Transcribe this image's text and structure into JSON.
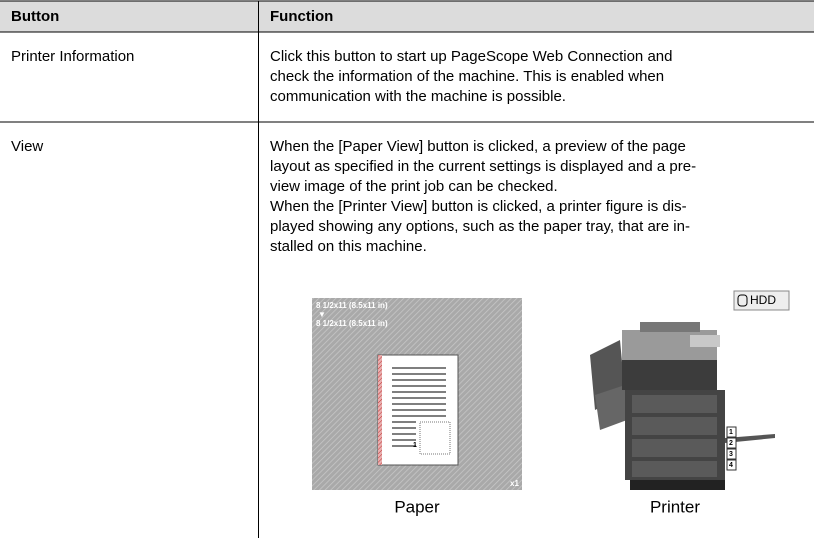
{
  "table": {
    "header": [
      "Button",
      "Function"
    ],
    "rows": [
      {
        "button": "Printer Information",
        "function": [
          "Click this button to start up PageScope Web Connection and",
          "check the information of the machine. This is enabled when",
          "communication with the machine is possible."
        ]
      },
      {
        "button": "View",
        "function": [
          "When the [Paper View] button is clicked, a preview of the page",
          "layout as specified in the current settings is displayed and a pre-",
          "view image of the print job can be checked.",
          "When the [Printer View] button is clicked, a printer figure is dis-",
          "played showing any options, such as the paper tray, that are in-",
          "stalled on this machine."
        ]
      }
    ]
  },
  "figure": {
    "paper_view": {
      "size_from": "8 1/2x11 (8.5x11 in)",
      "arrow": "▼",
      "size_to": "8 1/2x11 (8.5x11 in)",
      "page_number": "1",
      "copies": "x1",
      "caption": "Paper"
    },
    "printer_view": {
      "badge": "HDD",
      "trays": [
        "1",
        "2",
        "3",
        "4"
      ],
      "caption": "Printer"
    }
  }
}
